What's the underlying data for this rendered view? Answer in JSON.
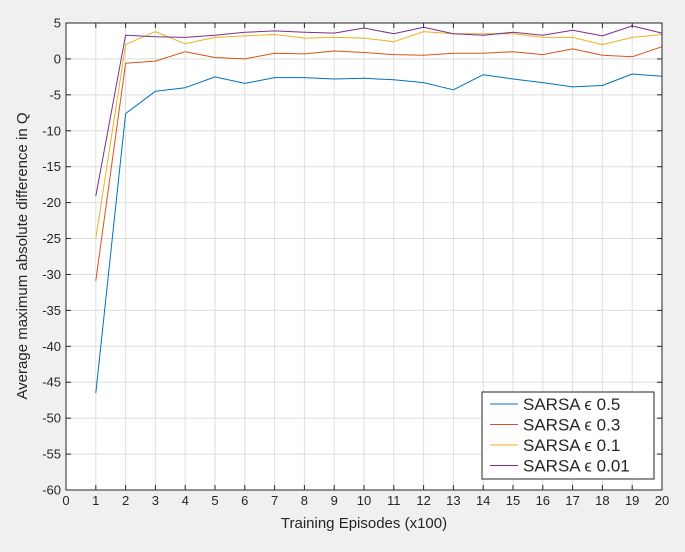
{
  "chart_data": {
    "type": "line",
    "xlabel": "Training Episodes (x100)",
    "ylabel": "Average maximum absolute difference in Q",
    "xlim": [
      0,
      20
    ],
    "ylim": [
      -60,
      5
    ],
    "xticks": [
      "0",
      "1",
      "2",
      "3",
      "4",
      "5",
      "6",
      "7",
      "8",
      "9",
      "10",
      "11",
      "12",
      "13",
      "14",
      "15",
      "16",
      "17",
      "18",
      "19",
      "20"
    ],
    "yticks": [
      "5",
      "0",
      "-5",
      "-10",
      "-15",
      "-20",
      "-25",
      "-30",
      "-35",
      "-40",
      "-45",
      "-50",
      "-55",
      "-60"
    ],
    "grid": true,
    "legend_position": "bottom-right",
    "x": [
      1,
      2,
      3,
      4,
      5,
      6,
      7,
      8,
      9,
      10,
      11,
      12,
      13,
      14,
      15,
      16,
      17,
      18,
      19,
      20
    ],
    "series": [
      {
        "name": "SARSA ϵ 0.5",
        "color": "#0072bd",
        "values": [
          -46.5,
          -7.6,
          -4.5,
          -4.0,
          -2.5,
          -3.4,
          -2.6,
          -2.6,
          -2.8,
          -2.7,
          -2.9,
          -3.3,
          -4.3,
          -2.2,
          -2.8,
          -3.3,
          -3.9,
          -3.7,
          -2.1,
          -2.4
        ]
      },
      {
        "name": "SARSA ϵ 0.3",
        "color": "#d95319",
        "values": [
          -30.9,
          -0.6,
          -0.3,
          1.0,
          0.2,
          0.0,
          0.8,
          0.7,
          1.1,
          0.9,
          0.6,
          0.5,
          0.8,
          0.8,
          1.0,
          0.6,
          1.4,
          0.5,
          0.3,
          1.7
        ]
      },
      {
        "name": "SARSA ϵ 0.1",
        "color": "#edb120",
        "values": [
          -25.0,
          2.0,
          3.8,
          2.1,
          3.0,
          3.2,
          3.4,
          2.9,
          3.0,
          2.9,
          2.4,
          3.8,
          3.5,
          3.5,
          3.5,
          3.0,
          3.0,
          2.0,
          3.0,
          3.4
        ]
      },
      {
        "name": "SARSA ϵ 0.01",
        "color": "#7e2f8e",
        "values": [
          -19.1,
          3.3,
          3.1,
          3.0,
          3.3,
          3.7,
          3.9,
          3.7,
          3.6,
          4.3,
          3.5,
          4.4,
          3.5,
          3.3,
          3.7,
          3.3,
          4.0,
          3.2,
          4.6,
          3.6
        ]
      }
    ]
  }
}
